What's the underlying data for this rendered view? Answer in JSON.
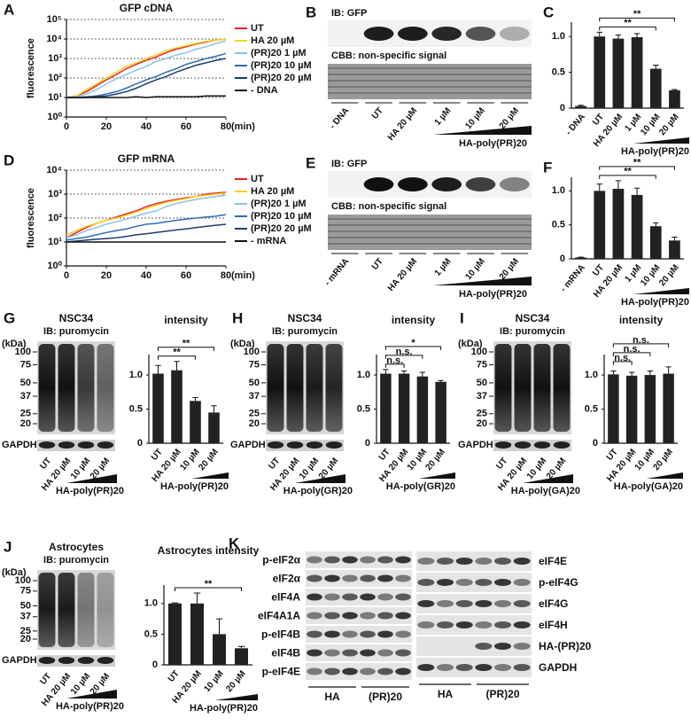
{
  "chart_data": [
    {
      "panel": "A",
      "type": "line",
      "title": "GFP cDNA",
      "y_label": "fluorescence",
      "x_label": "(min)",
      "x": [
        0,
        5,
        10,
        15,
        20,
        25,
        30,
        35,
        40,
        45,
        50,
        55,
        60,
        65,
        70,
        75,
        80
      ],
      "xlim": [
        0,
        80
      ],
      "xticks": [
        0,
        20,
        40,
        60,
        80
      ],
      "ylim": [
        1,
        100000
      ],
      "log_y": true,
      "grid": true,
      "yticks": [
        {
          "value": 1,
          "label": "10⁰"
        },
        {
          "value": 10,
          "label": "10¹"
        },
        {
          "value": 100,
          "label": "10²"
        },
        {
          "value": 1000,
          "label": "10³"
        },
        {
          "value": 10000,
          "label": "10⁴"
        },
        {
          "value": 100000,
          "label": "10⁵"
        }
      ],
      "series": [
        {
          "name": "UT",
          "color": "#e8212a",
          "values": [
            10,
            12,
            20,
            40,
            80,
            150,
            300,
            500,
            800,
            1200,
            2000,
            3000,
            4000,
            5500,
            7000,
            9000,
            10000
          ]
        },
        {
          "name": "HA 20 µM",
          "color": "#f5d31c",
          "values": [
            10,
            12,
            25,
            50,
            100,
            200,
            400,
            600,
            1000,
            1500,
            2500,
            3500,
            4500,
            6000,
            7500,
            9000,
            10000
          ]
        },
        {
          "name": "(PR)20 1 µM",
          "color": "#8cc3e6",
          "values": [
            10,
            11,
            15,
            25,
            50,
            90,
            150,
            250,
            400,
            700,
            1000,
            1500,
            2000,
            3000,
            4000,
            6000,
            8000
          ]
        },
        {
          "name": "(PR)20 10 µM",
          "color": "#2f6db5",
          "values": [
            10,
            10,
            11,
            12,
            15,
            20,
            30,
            50,
            80,
            120,
            200,
            300,
            500,
            700,
            1000,
            1300,
            1800
          ]
        },
        {
          "name": "(PR)20 20 µM",
          "color": "#1d3d73",
          "values": [
            10,
            10,
            10,
            11,
            12,
            15,
            20,
            30,
            50,
            80,
            120,
            200,
            300,
            450,
            600,
            800,
            1000
          ]
        },
        {
          "name": "- DNA",
          "color": "#111111",
          "values": [
            10,
            10,
            10,
            10,
            10,
            10,
            10,
            11,
            10,
            11,
            11,
            11,
            11,
            11,
            12,
            12,
            12
          ]
        }
      ]
    },
    {
      "panel": "C",
      "type": "bar",
      "categories": [
        "- DNA",
        "UT",
        "HA 20 µM",
        "1 µM",
        "10 µM",
        "20 µM"
      ],
      "values": [
        0.03,
        1.0,
        0.97,
        0.99,
        0.55,
        0.25
      ],
      "errors": [
        0.01,
        0.06,
        0.05,
        0.05,
        0.05,
        0.01
      ],
      "color": "#222222",
      "ylim": [
        0,
        1.2
      ],
      "yticks": [
        0,
        0.5,
        {
          "value": 1,
          "label": "1.0"
        }
      ],
      "significance": [
        {
          "from": 1,
          "to": 4,
          "label": "**"
        },
        {
          "from": 1,
          "to": 5,
          "label": "**"
        }
      ],
      "group_label": "HA-poly(PR)20"
    },
    {
      "panel": "D",
      "type": "line",
      "title": "GFP mRNA",
      "y_label": "fluorescence",
      "x_label": "(min)",
      "x": [
        0,
        5,
        10,
        15,
        20,
        25,
        30,
        35,
        40,
        45,
        50,
        55,
        60,
        65,
        70,
        75,
        80
      ],
      "xlim": [
        0,
        80
      ],
      "xticks": [
        0,
        20,
        40,
        60,
        80
      ],
      "ylim": [
        1,
        10000
      ],
      "log_y": true,
      "grid": true,
      "yticks": [
        {
          "value": 1,
          "label": "10⁰"
        },
        {
          "value": 10,
          "label": "10¹"
        },
        {
          "value": 100,
          "label": "10²"
        },
        {
          "value": 1000,
          "label": "10³"
        },
        {
          "value": 10000,
          "label": "10⁴"
        }
      ],
      "series": [
        {
          "name": "UT",
          "color": "#e8212a",
          "values": [
            15,
            25,
            40,
            60,
            80,
            110,
            150,
            200,
            300,
            400,
            500,
            600,
            700,
            800,
            1000,
            1100,
            1200
          ]
        },
        {
          "name": "HA 20 µM",
          "color": "#f5d31c",
          "values": [
            20,
            30,
            45,
            60,
            80,
            100,
            130,
            180,
            250,
            350,
            450,
            550,
            650,
            800,
            900,
            1000,
            1100
          ]
        },
        {
          "name": "(PR)20 1 µM",
          "color": "#8cc3e6",
          "values": [
            15,
            20,
            30,
            40,
            55,
            70,
            90,
            120,
            160,
            200,
            300,
            400,
            500,
            600,
            700,
            800,
            900
          ]
        },
        {
          "name": "(PR)20 10 µM",
          "color": "#2f6db5",
          "values": [
            12,
            14,
            16,
            20,
            25,
            30,
            35,
            45,
            55,
            60,
            70,
            80,
            90,
            100,
            110,
            120,
            140
          ]
        },
        {
          "name": "(PR)20 20 µM",
          "color": "#1d3d73",
          "values": [
            10,
            11,
            12,
            13,
            14,
            15,
            17,
            20,
            22,
            25,
            28,
            32,
            35,
            40,
            45,
            50,
            55
          ]
        },
        {
          "name": "- mRNA",
          "color": "#111111",
          "values": [
            10,
            10,
            10,
            10,
            10,
            10,
            10,
            10,
            10,
            10,
            10,
            10,
            10,
            10,
            10,
            10,
            10
          ]
        }
      ]
    },
    {
      "panel": "F",
      "type": "bar",
      "categories": [
        "- mRNA",
        "UT",
        "HA 20 µM",
        "1 µM",
        "10 µM",
        "20 µM"
      ],
      "values": [
        0.02,
        1.0,
        1.03,
        0.94,
        0.48,
        0.27
      ],
      "errors": [
        0.005,
        0.1,
        0.12,
        0.1,
        0.05,
        0.05
      ],
      "color": "#222222",
      "ylim": [
        0,
        1.2
      ],
      "yticks": [
        0,
        0.5,
        {
          "value": 1,
          "label": "1.0"
        }
      ],
      "significance": [
        {
          "from": 1,
          "to": 4,
          "label": "**"
        },
        {
          "from": 1,
          "to": 5,
          "label": "**"
        }
      ],
      "group_label": "HA-poly(PR)20"
    },
    {
      "type": "bar",
      "title": "intensity",
      "categories": [
        "UT",
        "HA 20 µM",
        "10 µM",
        "20 µM"
      ],
      "values": [
        1.02,
        1.07,
        0.62,
        0.45
      ],
      "errors": [
        0.12,
        0.13,
        0.05,
        0.1
      ],
      "color": "#222222",
      "ylim": [
        0,
        1.3
      ],
      "yticks": [
        0,
        0.5,
        {
          "value": 1,
          "label": "1.0"
        }
      ],
      "significance": [
        {
          "from": 0,
          "to": 2,
          "label": "**"
        },
        {
          "from": 0,
          "to": 3,
          "label": "**"
        }
      ],
      "group_label": "HA-poly(PR)20"
    },
    {
      "type": "bar",
      "title": "intensity",
      "categories": [
        "UT",
        "HA 20 µM",
        "10 µM",
        "20 µM"
      ],
      "values": [
        1.02,
        1.02,
        0.98,
        0.9
      ],
      "errors": [
        0.06,
        0.04,
        0.06,
        0.02
      ],
      "color": "#222222",
      "ylim": [
        0,
        1.3
      ],
      "yticks": [
        0,
        0.5,
        {
          "value": 1,
          "label": "1.0"
        }
      ],
      "significance": [
        {
          "from": 0,
          "to": 1,
          "label": "n.s."
        },
        {
          "from": 0,
          "to": 2,
          "label": "n.s."
        },
        {
          "from": 0,
          "to": 3,
          "label": "*"
        }
      ],
      "group_label": "HA-poly(GR)20"
    },
    {
      "type": "bar",
      "title": "intensity",
      "categories": [
        "UT",
        "HA 20 µM",
        "10 µM",
        "20 µM"
      ],
      "values": [
        1.01,
        0.99,
        1.0,
        1.02
      ],
      "errors": [
        0.05,
        0.05,
        0.06,
        0.1
      ],
      "color": "#222222",
      "ylim": [
        0,
        1.3
      ],
      "yticks": [
        0,
        0.5,
        {
          "value": 1,
          "label": "1.0"
        }
      ],
      "significance": [
        {
          "from": 0,
          "to": 1,
          "label": "n.s."
        },
        {
          "from": 0,
          "to": 2,
          "label": "n.s."
        },
        {
          "from": 0,
          "to": 3,
          "label": "n.s."
        }
      ],
      "group_label": "HA-poly(GA)20"
    },
    {
      "type": "bar",
      "title": "Astrocytes intensity",
      "categories": [
        "UT",
        "HA 20 µM",
        "10 µM",
        "20 µM"
      ],
      "values": [
        1.0,
        1.0,
        0.5,
        0.27
      ],
      "errors": [
        0.01,
        0.17,
        0.25,
        0.03
      ],
      "color": "#222222",
      "ylim": [
        0,
        1.3
      ],
      "yticks": [
        0,
        0.5,
        {
          "value": 1,
          "label": "1.0"
        }
      ],
      "significance": [
        {
          "from": 0,
          "to": 3,
          "label": "**"
        }
      ],
      "group_label": "HA-poly(PR)20"
    }
  ],
  "blots": [
    {
      "panel": "B",
      "probe": "IB: GFP",
      "stain": "CBB: non-specific signal",
      "lanes": [
        "- DNA",
        "UT",
        "HA 20 µM",
        "1 µM",
        "10 µM",
        "20 µM"
      ],
      "group_label": "HA-poly(PR)20"
    },
    {
      "panel": "E",
      "probe": "IB: GFP",
      "stain": "CBB: non-specific signal",
      "lanes": [
        "- mRNA",
        "UT",
        "HA 20 µM",
        "1 µM",
        "10 µM",
        "20 µM"
      ],
      "group_label": "HA-poly(PR)20"
    },
    {
      "panel": "G",
      "title": "NSC34",
      "probe": "IB: puromycin",
      "unit": "(kDa)",
      "markers": [
        100,
        75,
        50,
        37,
        25,
        20
      ],
      "loading": "GAPDH",
      "lanes": [
        "UT",
        "HA 20 µM",
        "10 µM",
        "20 µM"
      ],
      "group_label": "HA-poly(PR)20"
    },
    {
      "panel": "H",
      "title": "NSC34",
      "probe": "IB: puromycin",
      "unit": "(kDa)",
      "markers": [
        100,
        75,
        50,
        37,
        25,
        20
      ],
      "loading": "GAPDH",
      "lanes": [
        "UT",
        "HA 20 µM",
        "10 µM",
        "20 µM"
      ],
      "group_label": "HA-poly(GR)20"
    },
    {
      "panel": "I",
      "title": "NSC34",
      "probe": "IB: puromycin",
      "unit": "(kDa)",
      "markers": [
        100,
        75,
        50,
        37,
        25,
        20
      ],
      "loading": "GAPDH",
      "lanes": [
        "UT",
        "HA 20 µM",
        "10 µM",
        "20 µM"
      ],
      "group_label": "HA-poly(GA)20"
    },
    {
      "panel": "J",
      "title": "Astrocytes",
      "probe": "IB: puromycin",
      "unit": "(kDa)",
      "markers": [
        100,
        75,
        50,
        37,
        25,
        20
      ],
      "loading": "GAPDH",
      "lanes": [
        "UT",
        "HA 20 µM",
        "10 µM",
        "20 µM"
      ],
      "group_label": "HA-poly(PR)20"
    },
    {
      "panel": "K",
      "left_labels": [
        "p-eIF2α",
        "eIF2α",
        "eIF4A",
        "eIF4A1A",
        "p-eIF4B",
        "eIF4B",
        "p-eIF4E"
      ],
      "right_labels": [
        "eIF4E",
        "p-eIF4G",
        "eIF4G",
        "eIF4H",
        "HA-(PR)20",
        "GAPDH"
      ],
      "groups": [
        "HA",
        "(PR)20",
        "HA",
        "(PR)20"
      ]
    }
  ]
}
